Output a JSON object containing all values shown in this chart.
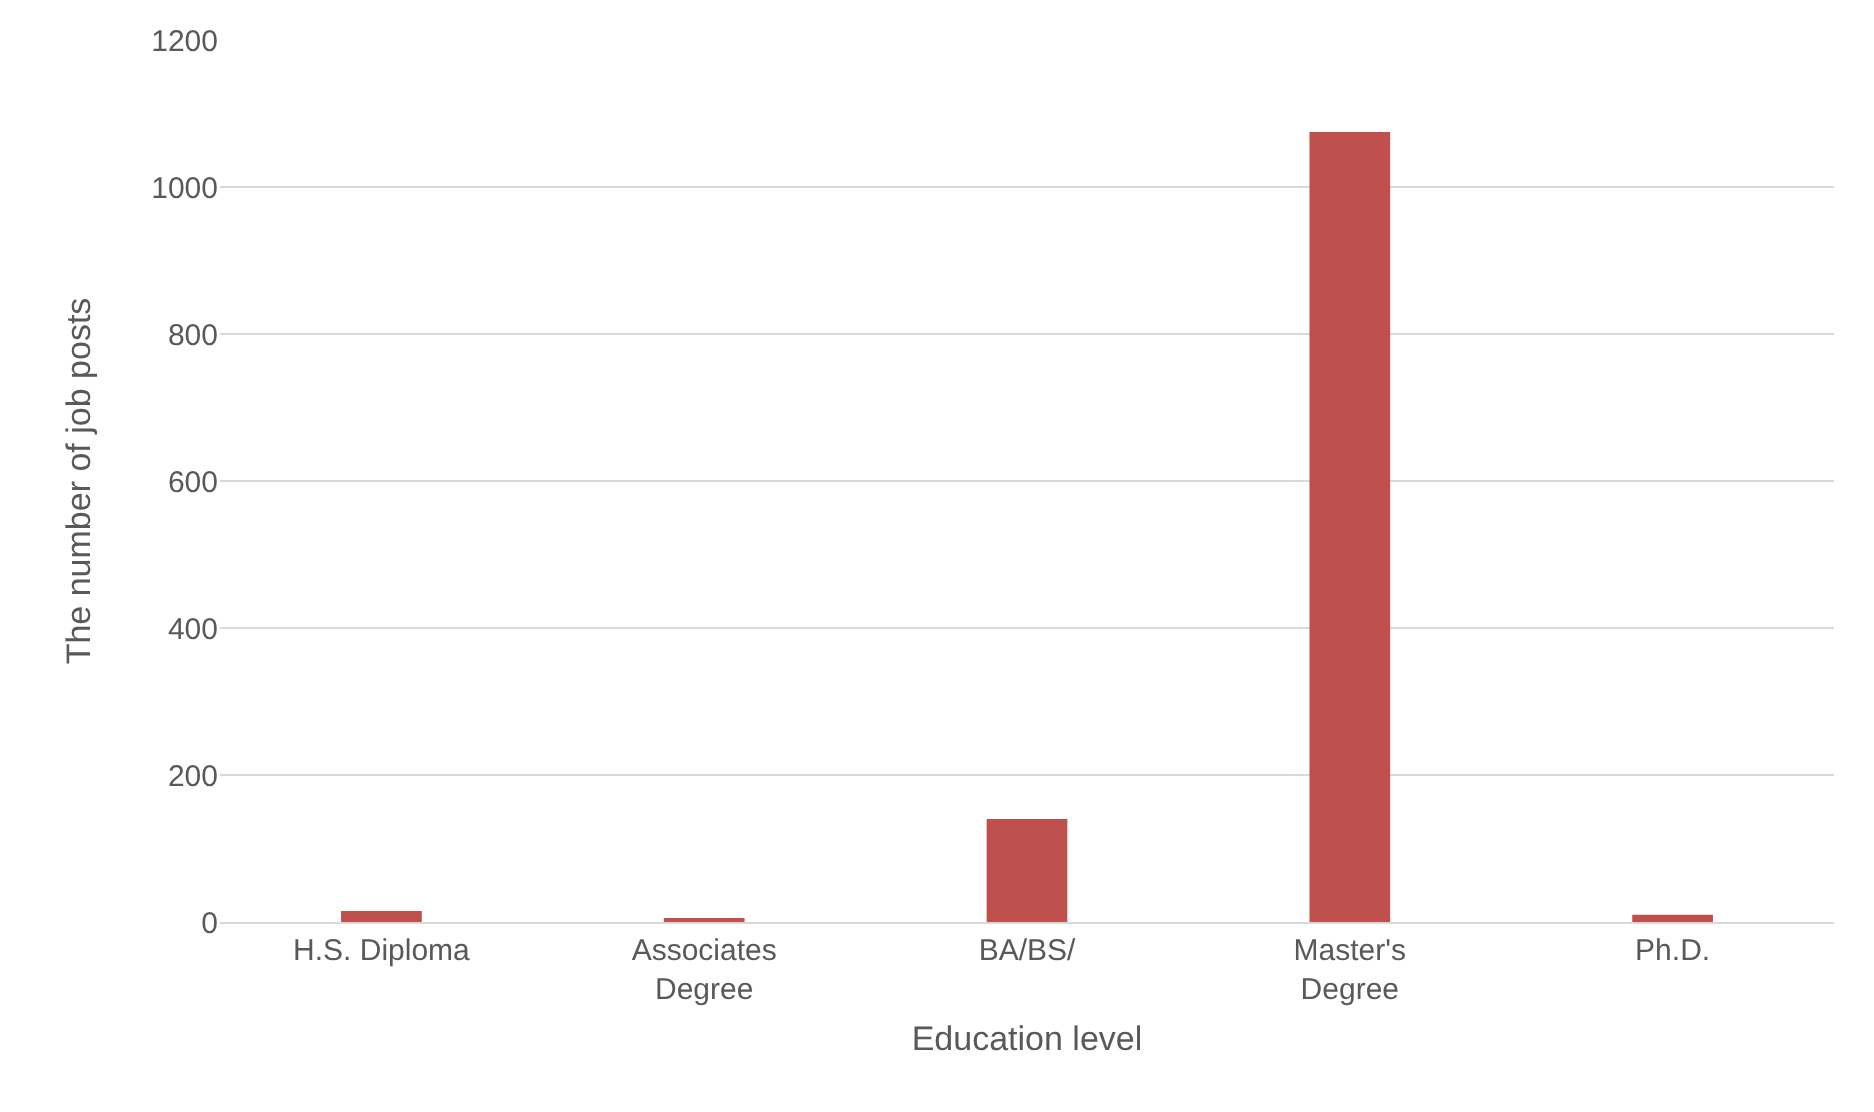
{
  "chart_data": {
    "type": "bar",
    "xlabel": "Education level",
    "ylabel": "The number of job posts",
    "categories": [
      "H.S. Diploma",
      "Associates Degree",
      "BA/BS/",
      "Master's Degree",
      "Ph.D."
    ],
    "values": [
      15,
      5,
      140,
      1075,
      10
    ],
    "color": "#c0504d",
    "ylim": [
      0,
      1200
    ],
    "yticks": [
      0,
      200,
      400,
      600,
      800,
      1000,
      1200
    ],
    "grid": "y"
  }
}
